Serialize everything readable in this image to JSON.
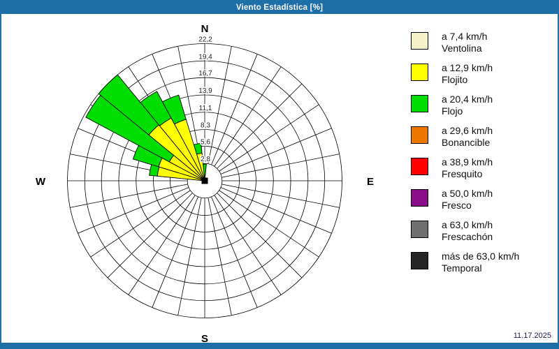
{
  "window": {
    "title": "Viento Estadística [%]",
    "date": "11.17.2025"
  },
  "colors": {
    "frame": "#1E6EA7",
    "title_text": "#FFFFFF",
    "background": "#FFFFFF",
    "grid": "#000000",
    "petal_outline": "#000000",
    "date_text": "#1B1B4E"
  },
  "compass": {
    "n": "N",
    "e": "E",
    "s": "S",
    "w": "W"
  },
  "legend": [
    {
      "speed": "a 7,4 km/h",
      "name": "Ventolina",
      "color": "#F5F1C9"
    },
    {
      "speed": "a 12,9 km/h",
      "name": "Flojito",
      "color": "#FFFF00"
    },
    {
      "speed": "a 20,4 km/h",
      "name": "Flojo",
      "color": "#00DD00"
    },
    {
      "speed": "a 29,6 km/h",
      "name": "Bonancible",
      "color": "#EE7700"
    },
    {
      "speed": "a 38,9 km/h",
      "name": "Fresquito",
      "color": "#FF0000"
    },
    {
      "speed": "a 50,0 km/h",
      "name": "Fresco",
      "color": "#8A0D8A"
    },
    {
      "speed": "a 63,0 km/h",
      "name": "Frescachón",
      "color": "#6F6F6F"
    },
    {
      "speed": "más de 63,0 km/h",
      "name": "Temporal",
      "color": "#252525"
    }
  ],
  "chart_data": {
    "type": "bar",
    "subtype": "polar-stacked-wind-rose",
    "title": "Viento Estadística [%]",
    "units": "percent of time wind from direction",
    "axis_max": 22.2,
    "ring_ticks": [
      2.8,
      5.6,
      8.3,
      11.1,
      13.9,
      16.7,
      19.4,
      22.2
    ],
    "ring_tick_labels": [
      "2,8",
      "5,6",
      "8,3",
      "11,1",
      "13,9",
      "16,7",
      "19,4",
      "22,2"
    ],
    "grid_sectors": 32,
    "sector_width_deg": 11.25,
    "legend_position": "right",
    "directions_deg": [
      360,
      348.75,
      337.5,
      326.25,
      315,
      303.75,
      292.5,
      281.25
    ],
    "series": [
      {
        "name": "Flojito (a 12,9 km/h)",
        "color": "#FFFF00",
        "values": [
          0.9,
          4.5,
          10.4,
          11.5,
          11.7,
          6.5,
          7.8,
          7.7
        ]
      },
      {
        "name": "Flojo (a 20,4 km/h)",
        "color": "#00DD00",
        "values": [
          1.8,
          1.6,
          4.1,
          4.9,
          10.5,
          15.3,
          4.3,
          1.3
        ]
      }
    ],
    "totals": [
      2.7,
      6.1,
      14.5,
      16.4,
      22.2,
      21.8,
      12.1,
      9.0
    ],
    "note_empty_directions": "All sectors from NE through SSW by S show no petals (0%)"
  }
}
